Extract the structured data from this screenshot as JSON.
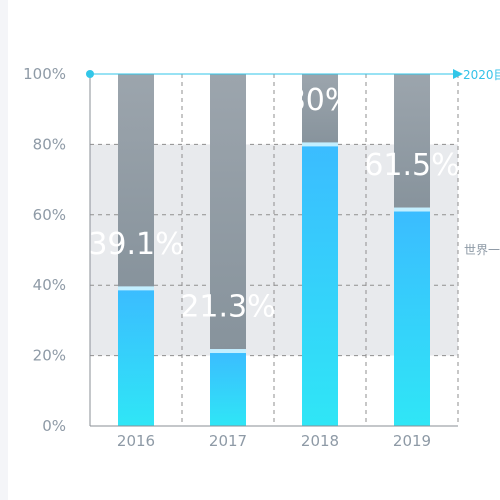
{
  "chart_data": {
    "type": "bar",
    "categories": [
      "2016",
      "2017",
      "2018",
      "2019"
    ],
    "values": [
      39.1,
      21.3,
      80,
      61.5
    ],
    "data_labels": [
      "39.1%",
      "21.3%",
      "80%",
      "61.5%"
    ],
    "ylim": [
      0,
      100
    ],
    "y_ticks": [
      "0%",
      "20%",
      "40%",
      "60%",
      "80%",
      "100%"
    ],
    "y_tick_values": [
      0,
      20,
      40,
      60,
      80,
      100
    ],
    "band_range": [
      20,
      80
    ],
    "band_label": "世界一",
    "top_axis_label": "2020目",
    "grid": true,
    "title": "",
    "xlabel": "",
    "ylabel": "",
    "colors": {
      "bar_top": "#3bbcff",
      "bar_bottom": "#2fe6f6",
      "remainder": "#8f9aa3",
      "axis_accent": "#32c6e8",
      "band": "#e8eaed",
      "grid": "#8f8f8f"
    }
  }
}
